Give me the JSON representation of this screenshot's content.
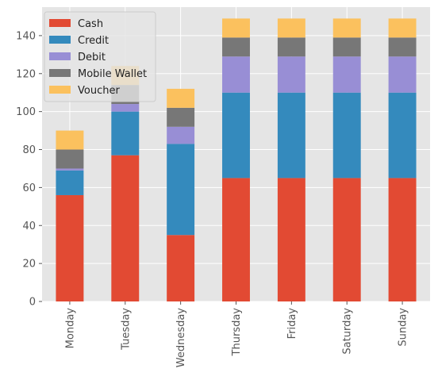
{
  "chart_data": {
    "type": "bar",
    "stacked": true,
    "categories": [
      "Monday",
      "Tuesday",
      "Wednesday",
      "Thursday",
      "Friday",
      "Saturday",
      "Sunday"
    ],
    "series": [
      {
        "name": "Cash",
        "color": "#E24A33",
        "values": [
          56,
          77,
          35,
          65,
          65,
          65,
          65
        ]
      },
      {
        "name": "Credit",
        "color": "#348ABD",
        "values": [
          13,
          23,
          48,
          45,
          45,
          45,
          45
        ]
      },
      {
        "name": "Debit",
        "color": "#988ED5",
        "values": [
          1,
          4,
          9,
          19,
          19,
          19,
          19
        ]
      },
      {
        "name": "Mobile Wallet",
        "color": "#777777",
        "values": [
          10,
          10,
          10,
          10,
          10,
          10,
          10
        ]
      },
      {
        "name": "Voucher",
        "color": "#FBC15E",
        "values": [
          10,
          10,
          10,
          10,
          10,
          10,
          10
        ]
      }
    ],
    "yticks": [
      0,
      20,
      40,
      60,
      80,
      100,
      120,
      140
    ],
    "ylim": [
      0,
      155
    ],
    "grid": true,
    "legend_position": "top-left",
    "title": "",
    "xlabel": "",
    "ylabel": ""
  }
}
